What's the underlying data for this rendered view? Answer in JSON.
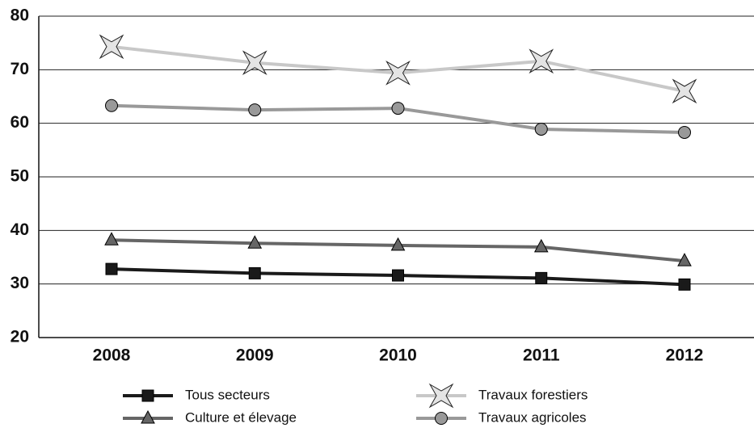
{
  "chart_data": {
    "type": "line",
    "categories": [
      "2008",
      "2009",
      "2010",
      "2011",
      "2012"
    ],
    "series": [
      {
        "name": "Tous secteurs",
        "color": "#1a1a1a",
        "marker": "square",
        "values": [
          32.8,
          32.0,
          31.6,
          31.1,
          29.9
        ]
      },
      {
        "name": "Culture et élevage",
        "color": "#666666",
        "marker": "triangle",
        "values": [
          38.2,
          37.6,
          37.2,
          36.9,
          34.3
        ]
      },
      {
        "name": "Travaux forestiers",
        "color": "#c8c8c8",
        "marker": "star",
        "values": [
          74.3,
          71.3,
          69.4,
          71.6,
          66.0
        ]
      },
      {
        "name": "Travaux agricoles",
        "color": "#999999",
        "marker": "circle",
        "values": [
          63.3,
          62.5,
          62.8,
          58.9,
          58.3
        ]
      }
    ],
    "ylim": [
      20,
      80
    ],
    "yticks": [
      20,
      30,
      40,
      50,
      60,
      70,
      80
    ],
    "grid": true
  }
}
